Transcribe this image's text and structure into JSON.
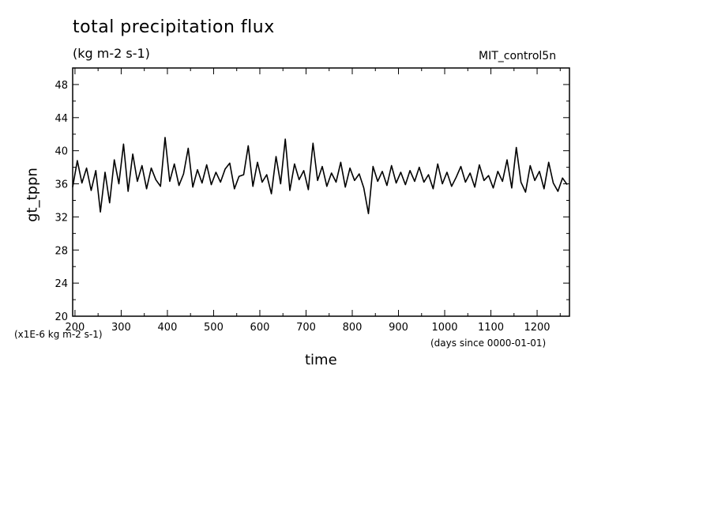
{
  "chart_data": {
    "type": "line",
    "title": "total precipitation flux",
    "units": "(kg m-2 s-1)",
    "run_label": "MIT_control5n",
    "xlabel": "time",
    "x_units": "(days since 0000-01-01)",
    "ylabel": "gt_tppn",
    "y_units": "(x1E-6 kg m-2 s-1)",
    "xlim": [
      195,
      1270
    ],
    "ylim": [
      20,
      50
    ],
    "x_ticks": [
      200,
      300,
      400,
      500,
      600,
      700,
      800,
      900,
      1000,
      1100,
      1200
    ],
    "y_ticks": [
      20,
      24,
      28,
      32,
      36,
      40,
      44,
      48
    ],
    "grid": false,
    "line_color": "#000000",
    "series": [
      {
        "x": [
          195,
          205,
          215,
          225,
          235,
          245,
          255,
          265,
          275,
          285,
          295,
          305,
          315,
          325,
          335,
          345,
          355,
          365,
          375,
          385,
          395,
          405,
          415,
          425,
          435,
          445,
          455,
          465,
          475,
          485,
          495,
          505,
          515,
          525,
          535,
          545,
          555,
          565,
          575,
          585,
          595,
          605,
          615,
          625,
          635,
          645,
          655,
          665,
          675,
          685,
          695,
          705,
          715,
          725,
          735,
          745,
          755,
          765,
          775,
          785,
          795,
          805,
          815,
          825,
          835,
          845,
          855,
          865,
          875,
          885,
          895,
          905,
          915,
          925,
          935,
          945,
          955,
          965,
          975,
          985,
          995,
          1005,
          1015,
          1025,
          1035,
          1045,
          1055,
          1065,
          1075,
          1085,
          1095,
          1105,
          1115,
          1125,
          1135,
          1145,
          1155,
          1165,
          1175,
          1185,
          1195,
          1205,
          1215,
          1225,
          1235,
          1245,
          1255,
          1265
        ],
        "y": [
          35.6,
          38.8,
          36.1,
          37.9,
          35.2,
          37.6,
          32.6,
          37.4,
          33.7,
          38.9,
          36.0,
          40.8,
          35.1,
          39.6,
          36.3,
          38.2,
          35.4,
          37.9,
          36.5,
          35.7,
          41.6,
          36.3,
          38.4,
          35.8,
          37.2,
          40.3,
          35.6,
          37.7,
          36.1,
          38.3,
          35.9,
          37.4,
          36.2,
          37.8,
          38.5,
          35.4,
          36.9,
          37.1,
          40.6,
          35.7,
          38.6,
          36.2,
          37.1,
          34.8,
          39.3,
          36.0,
          41.4,
          35.2,
          38.4,
          36.5,
          37.6,
          35.3,
          40.9,
          36.4,
          38.1,
          35.7,
          37.3,
          36.2,
          38.6,
          35.6,
          37.9,
          36.4,
          37.2,
          35.5,
          32.4,
          38.1,
          36.3,
          37.5,
          35.8,
          38.2,
          36.1,
          37.4,
          35.9,
          37.6,
          36.3,
          38.0,
          36.2,
          37.1,
          35.4,
          38.4,
          36.0,
          37.4,
          35.7,
          36.8,
          38.1,
          36.2,
          37.3,
          35.6,
          38.3,
          36.4,
          37.0,
          35.5,
          37.5,
          36.3,
          38.9,
          35.5,
          40.4,
          36.2,
          35.0,
          38.2,
          36.4,
          37.5,
          35.4,
          38.6,
          36.1,
          35.1,
          36.7,
          35.9
        ]
      }
    ]
  }
}
